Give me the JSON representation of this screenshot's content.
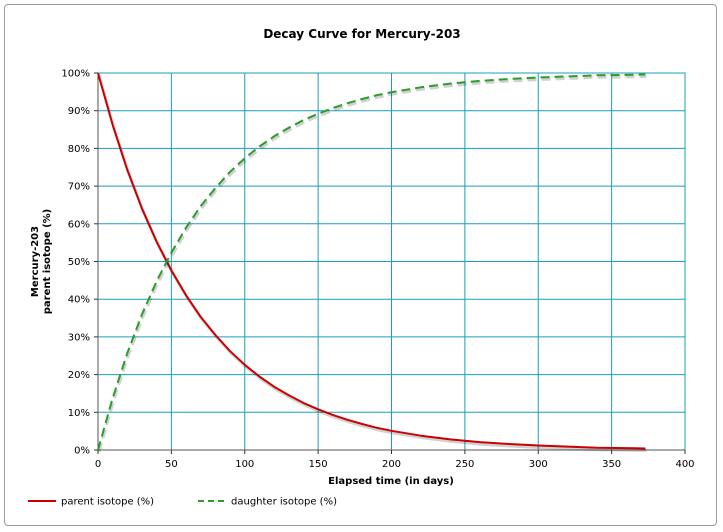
{
  "chart_data": {
    "type": "line",
    "title": "Decay Curve for Mercury-203",
    "xlabel": "Elapsed time (in days)",
    "ylabel_lines": [
      "Mercury-203",
      "parent isotope (%)"
    ],
    "xlim": [
      0,
      400
    ],
    "ylim": [
      0,
      100
    ],
    "x_ticks": [
      0,
      50,
      100,
      150,
      200,
      250,
      300,
      350,
      400
    ],
    "y_ticks": [
      0,
      10,
      20,
      30,
      40,
      50,
      60,
      70,
      80,
      90,
      100
    ],
    "y_tick_suffix": "%",
    "grid": true,
    "grid_color": "#1a9fbf",
    "legend_position": "bottom-left",
    "series": [
      {
        "name": "parent isotope (%)",
        "color": "#cc0000",
        "style": "solid",
        "x": [
          0,
          10,
          20,
          30,
          40,
          50,
          60,
          70,
          80,
          90,
          100,
          110,
          120,
          130,
          140,
          150,
          160,
          170,
          180,
          190,
          200,
          220,
          240,
          260,
          280,
          300,
          320,
          340,
          360,
          373
        ],
        "y": [
          100,
          86.2,
          74.3,
          64.0,
          55.2,
          47.6,
          41.0,
          35.3,
          30.5,
          26.2,
          22.6,
          19.5,
          16.8,
          14.5,
          12.5,
          10.8,
          9.3,
          8.0,
          6.9,
          5.9,
          5.1,
          3.8,
          2.8,
          2.1,
          1.6,
          1.2,
          0.9,
          0.6,
          0.5,
          0.4
        ]
      },
      {
        "name": "daughter isotope (%)",
        "color": "#2a9d2a",
        "style": "dashed",
        "x": [
          0,
          10,
          20,
          30,
          40,
          50,
          60,
          70,
          80,
          90,
          100,
          110,
          120,
          130,
          140,
          150,
          160,
          170,
          180,
          190,
          200,
          220,
          240,
          260,
          280,
          300,
          320,
          340,
          360,
          373
        ],
        "y": [
          0,
          13.8,
          25.7,
          36.0,
          44.8,
          52.4,
          59.0,
          64.7,
          69.5,
          73.8,
          77.4,
          80.5,
          83.2,
          85.5,
          87.5,
          89.2,
          90.7,
          92.0,
          93.1,
          94.1,
          94.9,
          96.2,
          97.2,
          97.9,
          98.4,
          98.8,
          99.1,
          99.4,
          99.5,
          99.6
        ]
      }
    ]
  }
}
